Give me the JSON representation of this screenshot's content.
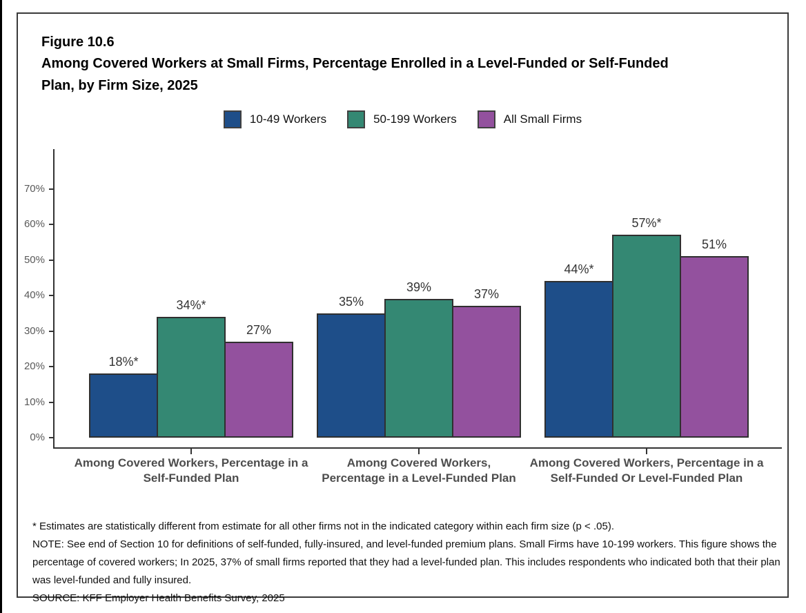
{
  "figure": {
    "label": "Figure 10.6",
    "title": "Among Covered Workers at Small Firms, Percentage Enrolled in a Level-Funded or Self-Funded Plan, by Firm Size, 2025"
  },
  "chart_data": {
    "type": "bar",
    "title": "Among Covered Workers at Small Firms, Percentage Enrolled in a Level-Funded or Self-Funded Plan, by Firm Size, 2025",
    "categories": [
      "Among Covered Workers, Percentage in a Self-Funded Plan",
      "Among Covered Workers, Percentage in a Level-Funded Plan",
      "Among Covered Workers, Percentage in a Self-Funded Or Level-Funded Plan"
    ],
    "series": [
      {
        "name": "10-49 Workers",
        "color": "#1E4E89",
        "values": [
          18,
          35,
          44
        ],
        "labels": [
          "18%*",
          "35%",
          "44%*"
        ]
      },
      {
        "name": "50-199 Workers",
        "color": "#348873",
        "values": [
          34,
          39,
          57
        ],
        "labels": [
          "34%*",
          "39%",
          "57%*"
        ]
      },
      {
        "name": "All Small Firms",
        "color": "#93519E",
        "values": [
          27,
          37,
          51
        ],
        "labels": [
          "27%",
          "37%",
          "51%"
        ]
      }
    ],
    "ylabel": "",
    "xlabel": "",
    "ylim": [
      0,
      70
    ],
    "yticks": [
      "0%",
      "10%",
      "20%",
      "30%",
      "40%",
      "50%",
      "60%",
      "70%"
    ],
    "grid": false,
    "legend_position": "top",
    "axis_color": "#333333"
  },
  "footnotes": {
    "significance": "* Estimates are statistically different from estimate for all other firms not in the indicated category within each firm size (p < .05).",
    "note": "NOTE: See end of Section 10 for definitions of self-funded, fully-insured, and level-funded premium plans. Small Firms have 10-199 workers. This figure shows the percentage of covered workers; In 2025, 37% of small firms reported that they had a level-funded plan. This includes respondents who indicated both that their plan was level-funded and fully insured.",
    "source": "SOURCE: KFF Employer Health Benefits Survey, 2025"
  }
}
